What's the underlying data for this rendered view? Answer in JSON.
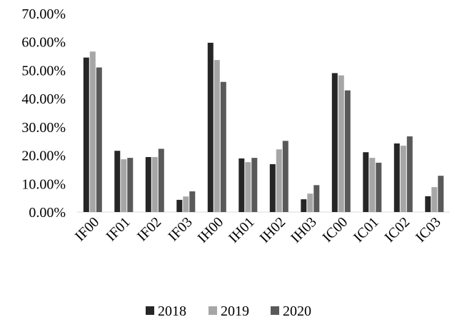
{
  "chart_data": {
    "type": "bar",
    "categories": [
      "IF00",
      "IF01",
      "IF02",
      "IF03",
      "IH00",
      "IH01",
      "IH02",
      "IH03",
      "IC00",
      "IC01",
      "IC02",
      "IC03"
    ],
    "series": [
      {
        "name": "2018",
        "color": "#262626",
        "values": [
          54.5,
          21.6,
          19.4,
          4.3,
          59.7,
          18.9,
          16.9,
          4.5,
          49.0,
          21.1,
          24.2,
          5.6
        ]
      },
      {
        "name": "2019",
        "color": "#a6a6a6",
        "values": [
          56.6,
          18.6,
          19.4,
          5.5,
          53.6,
          17.6,
          22.1,
          6.5,
          48.2,
          19.1,
          23.4,
          8.8
        ]
      },
      {
        "name": "2020",
        "color": "#595959",
        "values": [
          51.0,
          19.1,
          22.3,
          7.3,
          45.9,
          19.1,
          25.1,
          9.5,
          42.9,
          17.4,
          26.7,
          12.8
        ]
      }
    ],
    "title": "",
    "xlabel": "",
    "ylabel": "",
    "ylim": [
      0,
      70
    ],
    "yticks": [
      "0.00%",
      "10.00%",
      "20.00%",
      "30.00%",
      "40.00%",
      "50.00%",
      "60.00%",
      "70.00%"
    ],
    "grid": false,
    "legend": "bottom"
  }
}
